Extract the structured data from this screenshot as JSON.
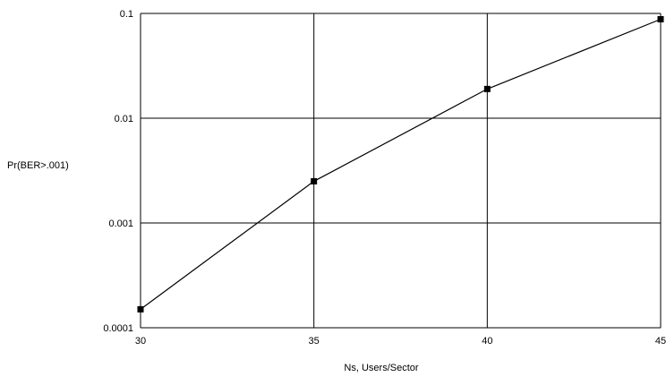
{
  "chart_data": {
    "type": "line",
    "title": "",
    "xlabel": "Ns,  Users/Sector",
    "ylabel": "Pr(BER>.001)",
    "xlim": [
      30,
      45
    ],
    "ylim": [
      0.0001,
      0.1
    ],
    "yscale": "log",
    "grid": true,
    "legend": "none",
    "x_ticks": [
      30,
      35,
      40,
      45
    ],
    "x_tick_labels": [
      "30",
      "35",
      "40",
      "45"
    ],
    "y_ticks": [
      0.0001,
      0.001,
      0.01,
      0.1
    ],
    "y_tick_labels": [
      "0.0001",
      "0.001",
      "0.01",
      "0.1"
    ],
    "series": [
      {
        "x": [
          30,
          35,
          40,
          45
        ],
        "y": [
          0.00015,
          0.0025,
          0.019,
          0.088
        ]
      }
    ],
    "colors": {
      "line": "#000000",
      "grid": "#000000",
      "marker": "#000000"
    }
  }
}
